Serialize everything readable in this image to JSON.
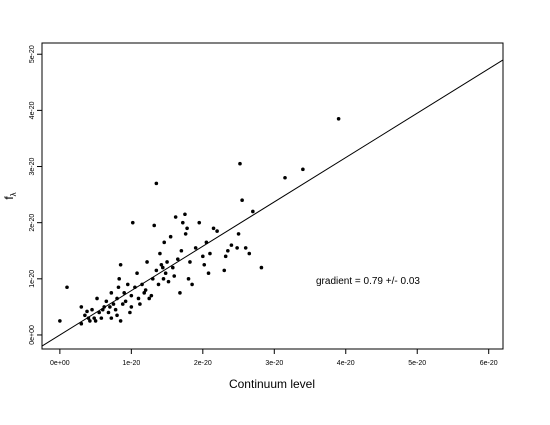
{
  "chart_data": {
    "type": "scatter",
    "title": "",
    "xlabel": "Continuum level",
    "ylabel": "f",
    "ylabel_subscript": "λ",
    "xlim": [
      -2.5e-21,
      6.2e-20
    ],
    "ylim": [
      -2.5e-21,
      5.2e-20
    ],
    "x_ticks": [
      0,
      1e-20,
      2e-20,
      3e-20,
      4e-20,
      5e-20,
      6e-20
    ],
    "x_tick_labels": [
      "0e+00",
      "1e-20",
      "2e-20",
      "3e-20",
      "4e-20",
      "5e-20",
      "6e-20"
    ],
    "y_ticks": [
      0,
      1e-20,
      2e-20,
      3e-20,
      4e-20,
      5e-20
    ],
    "y_tick_labels": [
      "0e+00",
      "1e-20",
      "2e-20",
      "3e-20",
      "4e-20",
      "5e-20"
    ],
    "grid": false,
    "annotation": "gradient = 0.79 +/- 0.03",
    "fit_line": {
      "slope": 0.79,
      "intercept": 0
    },
    "points": [
      [
        0.0,
        2.5e-21
      ],
      [
        1e-21,
        8.5e-21
      ],
      [
        3e-21,
        2e-21
      ],
      [
        3e-21,
        5e-21
      ],
      [
        3.5e-21,
        3.5e-21
      ],
      [
        3.8e-21,
        4.2e-21
      ],
      [
        4e-21,
        3e-21
      ],
      [
        4.2e-21,
        2.5e-21
      ],
      [
        4.5e-21,
        4.5e-21
      ],
      [
        4.8e-21,
        3e-21
      ],
      [
        5e-21,
        2.5e-21
      ],
      [
        5.2e-21,
        6.5e-21
      ],
      [
        5.5e-21,
        4e-21
      ],
      [
        5.8e-21,
        3e-21
      ],
      [
        6e-21,
        4.5e-21
      ],
      [
        6.2e-21,
        5e-21
      ],
      [
        6.5e-21,
        6e-21
      ],
      [
        6.8e-21,
        4e-21
      ],
      [
        7e-21,
        5e-21
      ],
      [
        7.2e-21,
        3e-21
      ],
      [
        7.2e-21,
        7.5e-21
      ],
      [
        7.5e-21,
        5.5e-21
      ],
      [
        7.8e-21,
        4.5e-21
      ],
      [
        8e-21,
        6.5e-21
      ],
      [
        8e-21,
        3.5e-21
      ],
      [
        8.2e-21,
        8.5e-21
      ],
      [
        8.3e-21,
        1e-20
      ],
      [
        8.5e-21,
        1.25e-20
      ],
      [
        8.5e-21,
        2.5e-21
      ],
      [
        8.8e-21,
        5.5e-21
      ],
      [
        9e-21,
        7.5e-21
      ],
      [
        9.2e-21,
        6e-21
      ],
      [
        9.5e-21,
        9e-21
      ],
      [
        9.8e-21,
        4e-21
      ],
      [
        1e-20,
        7e-21
      ],
      [
        1e-20,
        5e-21
      ],
      [
        1.02e-20,
        2e-20
      ],
      [
        1.05e-20,
        8.5e-21
      ],
      [
        1.08e-20,
        1.1e-20
      ],
      [
        1.1e-20,
        6.5e-21
      ],
      [
        1.12e-20,
        5.5e-21
      ],
      [
        1.15e-20,
        9e-21
      ],
      [
        1.18e-20,
        7.5e-21
      ],
      [
        1.2e-20,
        8e-21
      ],
      [
        1.22e-20,
        1.3e-20
      ],
      [
        1.25e-20,
        6.5e-21
      ],
      [
        1.28e-20,
        7e-21
      ],
      [
        1.3e-20,
        1e-20
      ],
      [
        1.32e-20,
        1.95e-20
      ],
      [
        1.35e-20,
        2.7e-20
      ],
      [
        1.35e-20,
        1.15e-20
      ],
      [
        1.38e-20,
        9e-21
      ],
      [
        1.4e-20,
        1.45e-20
      ],
      [
        1.42e-20,
        1.25e-20
      ],
      [
        1.44e-20,
        1.2e-20
      ],
      [
        1.45e-20,
        1e-20
      ],
      [
        1.46e-20,
        1.65e-20
      ],
      [
        1.48e-20,
        1.1e-20
      ],
      [
        1.5e-20,
        1.3e-20
      ],
      [
        1.52e-20,
        9.5e-21
      ],
      [
        1.55e-20,
        1.75e-20
      ],
      [
        1.58e-20,
        1.2e-20
      ],
      [
        1.6e-20,
        1.05e-20
      ],
      [
        1.62e-20,
        2.1e-20
      ],
      [
        1.65e-20,
        1.35e-20
      ],
      [
        1.68e-20,
        7.5e-21
      ],
      [
        1.7e-20,
        1.5e-20
      ],
      [
        1.72e-20,
        2e-20
      ],
      [
        1.75e-20,
        2.15e-20
      ],
      [
        1.76e-20,
        1.8e-20
      ],
      [
        1.78e-20,
        1.9e-20
      ],
      [
        1.8e-20,
        1e-20
      ],
      [
        1.82e-20,
        1.3e-20
      ],
      [
        1.85e-20,
        9e-21
      ],
      [
        1.9e-20,
        1.55e-20
      ],
      [
        1.95e-20,
        2e-20
      ],
      [
        2e-20,
        1.4e-20
      ],
      [
        2.02e-20,
        1.25e-20
      ],
      [
        2.05e-20,
        1.65e-20
      ],
      [
        2.08e-20,
        1.1e-20
      ],
      [
        2.1e-20,
        1.45e-20
      ],
      [
        2.15e-20,
        1.9e-20
      ],
      [
        2.2e-20,
        1.85e-20
      ],
      [
        2.3e-20,
        1.15e-20
      ],
      [
        2.32e-20,
        1.4e-20
      ],
      [
        2.35e-20,
        1.5e-20
      ],
      [
        2.4e-20,
        1.6e-20
      ],
      [
        2.48e-20,
        1.55e-20
      ],
      [
        2.5e-20,
        1.8e-20
      ],
      [
        2.52e-20,
        3.05e-20
      ],
      [
        2.55e-20,
        2.4e-20
      ],
      [
        2.6e-20,
        1.55e-20
      ],
      [
        2.65e-20,
        1.45e-20
      ],
      [
        2.7e-20,
        2.2e-20
      ],
      [
        2.82e-20,
        1.2e-20
      ],
      [
        3.15e-20,
        2.8e-20
      ],
      [
        3.4e-20,
        2.95e-20
      ],
      [
        3.9e-20,
        3.85e-20
      ]
    ]
  }
}
